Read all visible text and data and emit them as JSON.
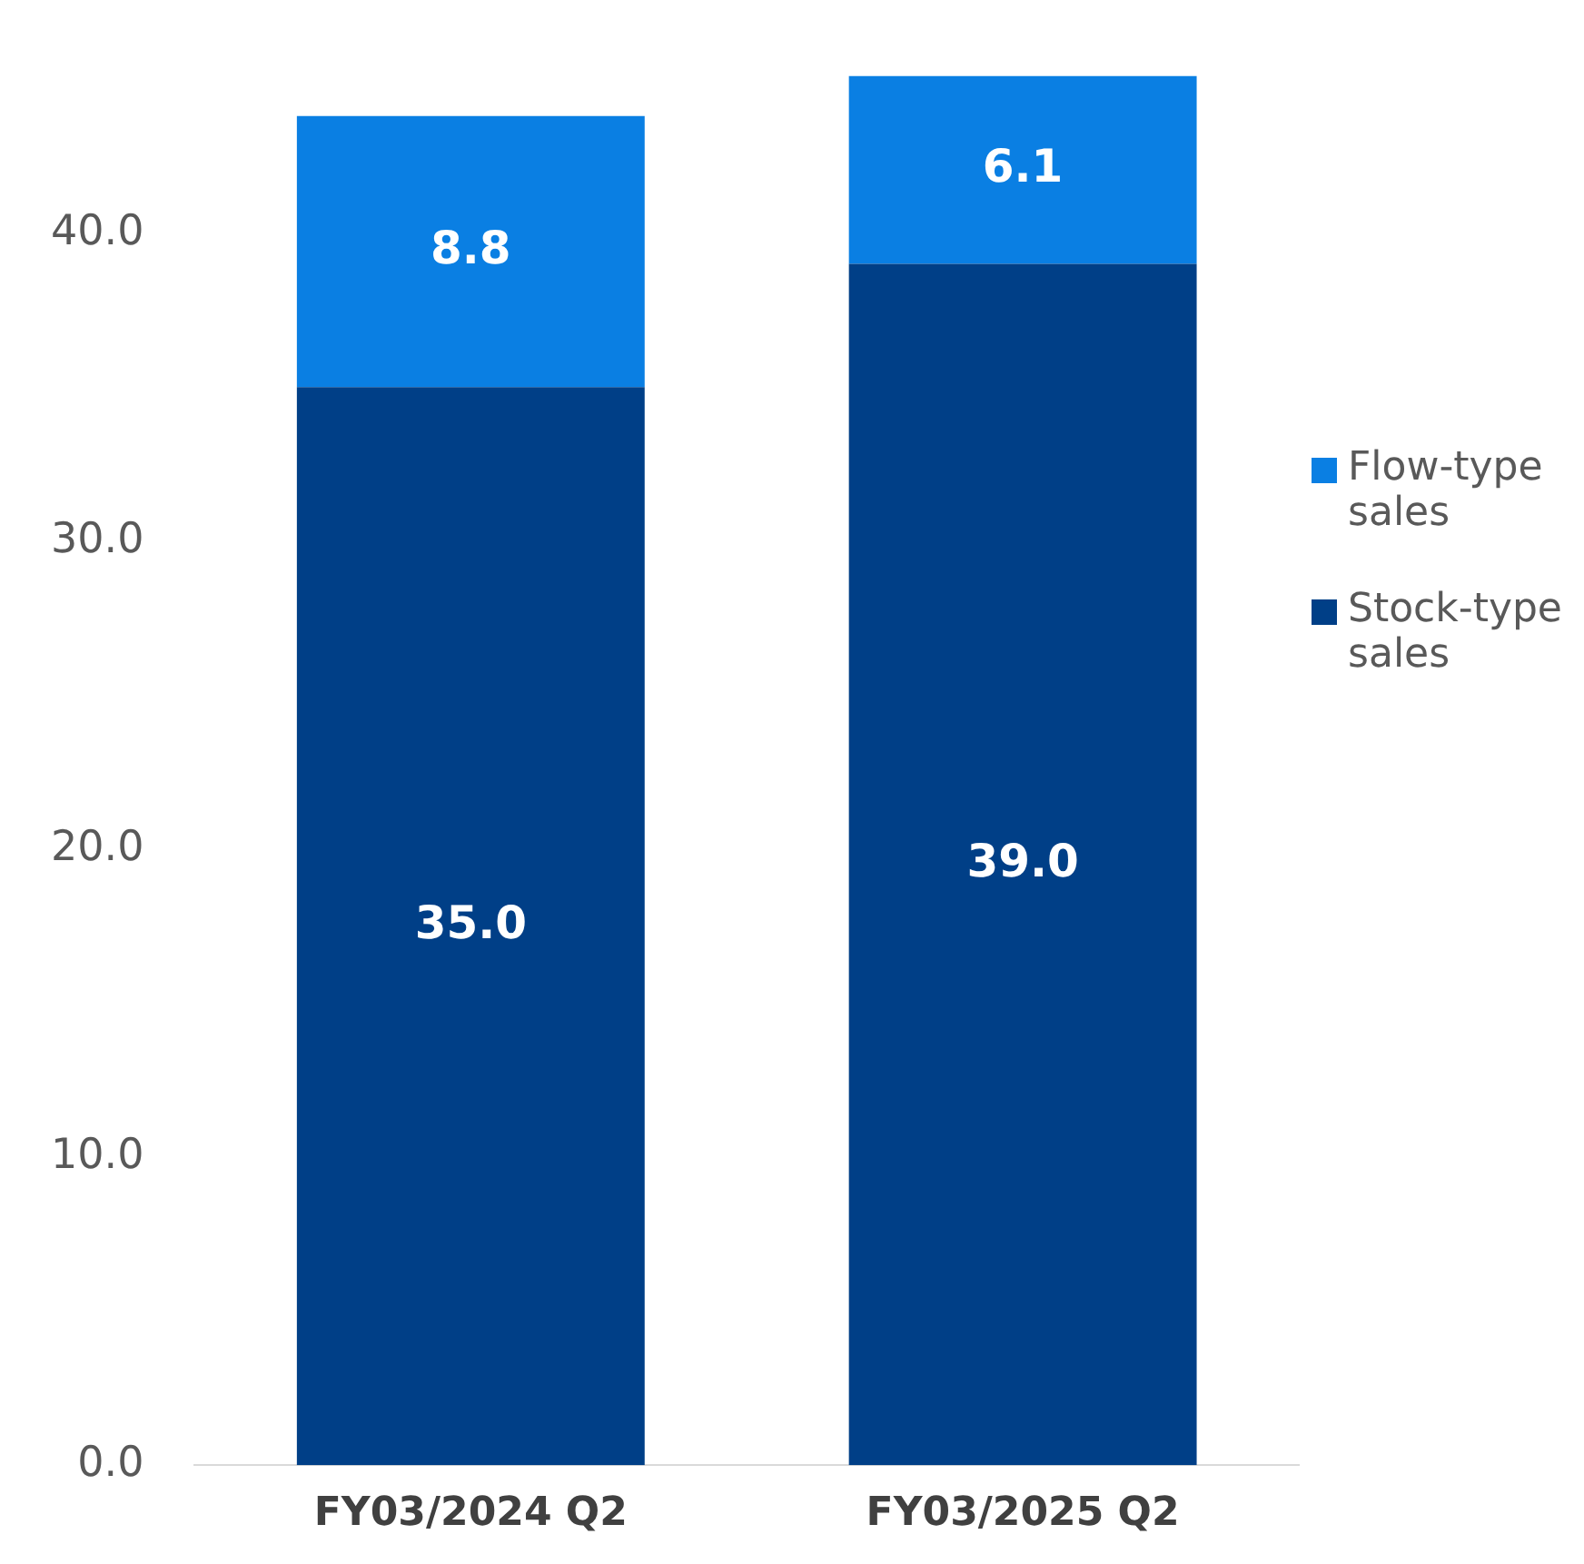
{
  "chart_data": {
    "type": "bar",
    "stacked": true,
    "categories": [
      "FY03/2024 Q2",
      "FY03/2025 Q2"
    ],
    "series": [
      {
        "name": "Stock-type sales",
        "color": "#003f87",
        "values": [
          35.0,
          39.0
        ],
        "value_labels": [
          "35.0",
          "39.0"
        ]
      },
      {
        "name": "Flow-type sales",
        "color": "#0a7fe3",
        "values": [
          8.8,
          6.1
        ],
        "value_labels": [
          "8.8",
          "6.1"
        ]
      }
    ],
    "ylim": [
      0,
      45.1
    ],
    "yticks": [
      {
        "value": 0,
        "label": "0.0"
      },
      {
        "value": 10,
        "label": "10.0"
      },
      {
        "value": 20,
        "label": "20.0"
      },
      {
        "value": 30,
        "label": "30.0"
      },
      {
        "value": 40,
        "label": "40.0"
      }
    ],
    "grid": false,
    "legend": "right"
  }
}
